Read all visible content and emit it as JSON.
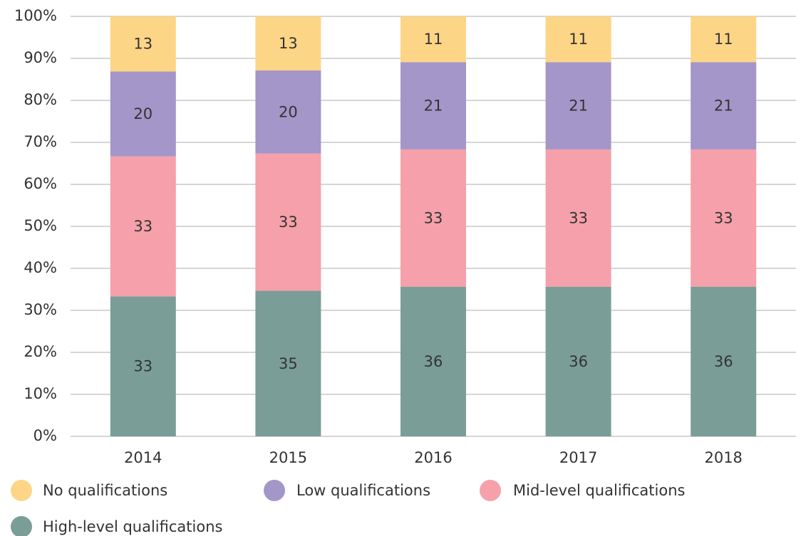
{
  "chart_data": {
    "type": "bar",
    "stacking": "percent",
    "categories": [
      "2014",
      "2015",
      "2016",
      "2017",
      "2018"
    ],
    "series": [
      {
        "name": "No qualifications",
        "color": "#fdd586",
        "values": [
          13,
          13,
          11,
          11,
          11
        ]
      },
      {
        "name": "Low qualifications",
        "color": "#a496c8",
        "values": [
          20,
          20,
          21,
          21,
          21
        ]
      },
      {
        "name": "Mid-level qualifications",
        "color": "#f5a0aa",
        "values": [
          33,
          33,
          33,
          33,
          33
        ]
      },
      {
        "name": "High-level qualifications",
        "color": "#7a9e97",
        "values": [
          33,
          35,
          36,
          36,
          36
        ]
      }
    ],
    "ylim": [
      0,
      100
    ],
    "yticks": [
      {
        "value": 0,
        "label": "0%"
      },
      {
        "value": 10,
        "label": "10%"
      },
      {
        "value": 20,
        "label": "20%"
      },
      {
        "value": 30,
        "label": "30%"
      },
      {
        "value": 40,
        "label": "40%"
      },
      {
        "value": 50,
        "label": "50%"
      },
      {
        "value": 60,
        "label": "60%"
      },
      {
        "value": 70,
        "label": "70%"
      },
      {
        "value": 80,
        "label": "80%"
      },
      {
        "value": 90,
        "label": "90%"
      },
      {
        "value": 100,
        "label": "100%"
      }
    ],
    "grid": true,
    "legend": "bottom"
  }
}
